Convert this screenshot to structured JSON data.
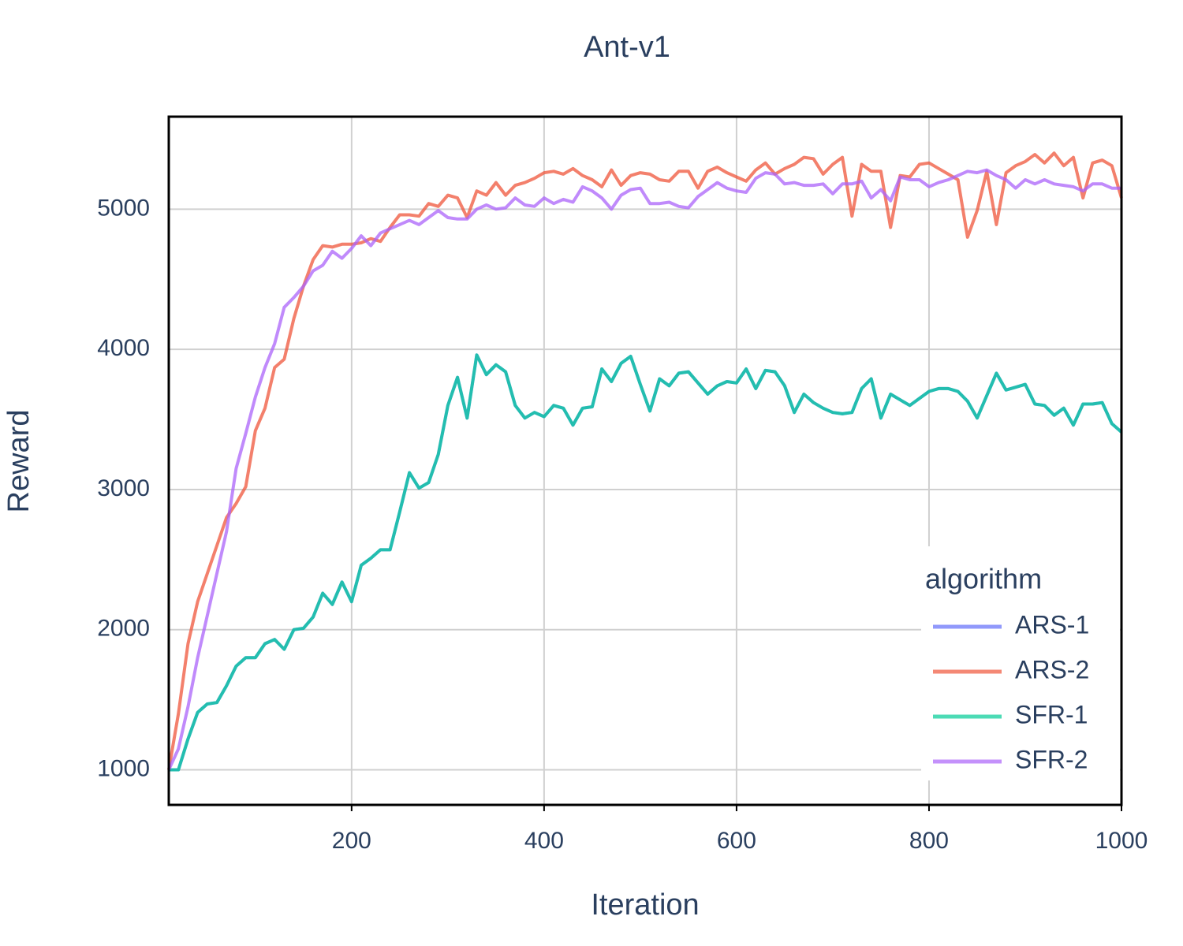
{
  "chart_data": {
    "type": "line",
    "title": "Ant-v1",
    "x_label": "Iteration",
    "y_label": "Reward",
    "legend_title": "algorithm",
    "legend": "bottom-right",
    "grid": true,
    "xlim": [
      10,
      1000
    ],
    "xticks": [
      200,
      400,
      600,
      800,
      1000
    ],
    "ylim": [
      750,
      5660
    ],
    "yticks": [
      1000,
      2000,
      3000,
      4000,
      5000
    ],
    "x": [
      10,
      20,
      30,
      40,
      50,
      60,
      70,
      80,
      90,
      100,
      110,
      120,
      130,
      140,
      150,
      160,
      170,
      180,
      190,
      200,
      210,
      220,
      230,
      240,
      250,
      260,
      270,
      280,
      290,
      300,
      310,
      320,
      330,
      340,
      350,
      360,
      370,
      380,
      390,
      400,
      410,
      420,
      430,
      440,
      450,
      460,
      470,
      480,
      490,
      500,
      510,
      520,
      530,
      540,
      550,
      560,
      570,
      580,
      590,
      600,
      610,
      620,
      630,
      640,
      650,
      660,
      670,
      680,
      690,
      700,
      710,
      720,
      730,
      740,
      750,
      760,
      770,
      780,
      790,
      800,
      810,
      820,
      830,
      840,
      850,
      860,
      870,
      880,
      890,
      900,
      910,
      920,
      930,
      940,
      950,
      960,
      970,
      980,
      990,
      1000
    ],
    "series": [
      {
        "name": "ARS-1",
        "color": "#636efa",
        "values": [
          1000,
          1000,
          1220,
          1410,
          1470,
          1480,
          1600,
          1740,
          1800,
          1800,
          1900,
          1930,
          1860,
          2000,
          2010,
          2090,
          2260,
          2180,
          2340,
          2200,
          2460,
          2510,
          2570,
          2570,
          2840,
          3120,
          3010,
          3050,
          3250,
          3600,
          3800,
          3510,
          3960,
          3820,
          3890,
          3840,
          3600,
          3510,
          3550,
          3520,
          3600,
          3580,
          3460,
          3580,
          3590,
          3860,
          3770,
          3900,
          3950,
          3750,
          3560,
          3790,
          3740,
          3830,
          3840,
          3760,
          3680,
          3740,
          3770,
          3760,
          3860,
          3720,
          3850,
          3840,
          3740,
          3550,
          3680,
          3620,
          3580,
          3550,
          3540,
          3550,
          3720,
          3790,
          3510,
          3680,
          3640,
          3600,
          3650,
          3700,
          3720,
          3720,
          3700,
          3630,
          3510,
          3670,
          3830,
          3710,
          3730,
          3750,
          3610,
          3600,
          3530,
          3580,
          3460,
          3610,
          3610,
          3620,
          3470,
          3410
        ]
      },
      {
        "name": "ARS-2",
        "color": "#ef553b",
        "values": [
          1000,
          1400,
          1900,
          2200,
          2400,
          2600,
          2800,
          2900,
          3020,
          3420,
          3580,
          3870,
          3930,
          4220,
          4450,
          4640,
          4740,
          4730,
          4750,
          4750,
          4760,
          4790,
          4770,
          4870,
          4960,
          4960,
          4950,
          5040,
          5020,
          5100,
          5080,
          4940,
          5130,
          5100,
          5190,
          5100,
          5170,
          5190,
          5220,
          5260,
          5270,
          5250,
          5290,
          5240,
          5210,
          5160,
          5280,
          5170,
          5240,
          5260,
          5250,
          5210,
          5200,
          5270,
          5270,
          5150,
          5270,
          5300,
          5260,
          5230,
          5200,
          5280,
          5330,
          5250,
          5290,
          5320,
          5370,
          5360,
          5250,
          5320,
          5370,
          4950,
          5320,
          5270,
          5270,
          4870,
          5240,
          5230,
          5320,
          5330,
          5290,
          5250,
          5210,
          4800,
          4990,
          5270,
          4890,
          5260,
          5310,
          5340,
          5390,
          5330,
          5400,
          5310,
          5370,
          5080,
          5330,
          5350,
          5310,
          5080
        ]
      },
      {
        "name": "SFR-1",
        "color": "#00cc96",
        "values": [
          1000,
          1000,
          1220,
          1410,
          1470,
          1480,
          1600,
          1740,
          1800,
          1800,
          1900,
          1930,
          1860,
          2000,
          2010,
          2090,
          2260,
          2180,
          2340,
          2200,
          2460,
          2510,
          2570,
          2570,
          2840,
          3120,
          3010,
          3050,
          3250,
          3600,
          3800,
          3510,
          3960,
          3820,
          3890,
          3840,
          3600,
          3510,
          3550,
          3520,
          3600,
          3580,
          3460,
          3580,
          3590,
          3860,
          3770,
          3900,
          3950,
          3750,
          3560,
          3790,
          3740,
          3830,
          3840,
          3760,
          3680,
          3740,
          3770,
          3760,
          3860,
          3720,
          3850,
          3840,
          3740,
          3550,
          3680,
          3620,
          3580,
          3550,
          3540,
          3550,
          3720,
          3790,
          3510,
          3680,
          3640,
          3600,
          3650,
          3700,
          3720,
          3720,
          3700,
          3630,
          3510,
          3670,
          3830,
          3710,
          3730,
          3750,
          3610,
          3600,
          3530,
          3580,
          3460,
          3610,
          3610,
          3620,
          3470,
          3410
        ]
      },
      {
        "name": "SFR-2",
        "color": "#ab63fa",
        "values": [
          1000,
          1150,
          1450,
          1800,
          2100,
          2400,
          2700,
          3150,
          3400,
          3660,
          3870,
          4040,
          4300,
          4370,
          4450,
          4560,
          4600,
          4700,
          4650,
          4720,
          4810,
          4740,
          4830,
          4860,
          4890,
          4920,
          4890,
          4940,
          4990,
          4940,
          4930,
          4930,
          5000,
          5030,
          5000,
          5010,
          5080,
          5030,
          5020,
          5080,
          5040,
          5070,
          5050,
          5160,
          5130,
          5080,
          5000,
          5100,
          5140,
          5150,
          5040,
          5040,
          5050,
          5020,
          5010,
          5090,
          5140,
          5190,
          5150,
          5130,
          5120,
          5220,
          5260,
          5250,
          5180,
          5190,
          5170,
          5170,
          5180,
          5110,
          5180,
          5180,
          5200,
          5080,
          5140,
          5060,
          5230,
          5210,
          5210,
          5160,
          5190,
          5210,
          5240,
          5270,
          5260,
          5280,
          5240,
          5210,
          5150,
          5210,
          5180,
          5210,
          5180,
          5170,
          5160,
          5130,
          5180,
          5180,
          5150,
          5150
        ]
      }
    ]
  }
}
